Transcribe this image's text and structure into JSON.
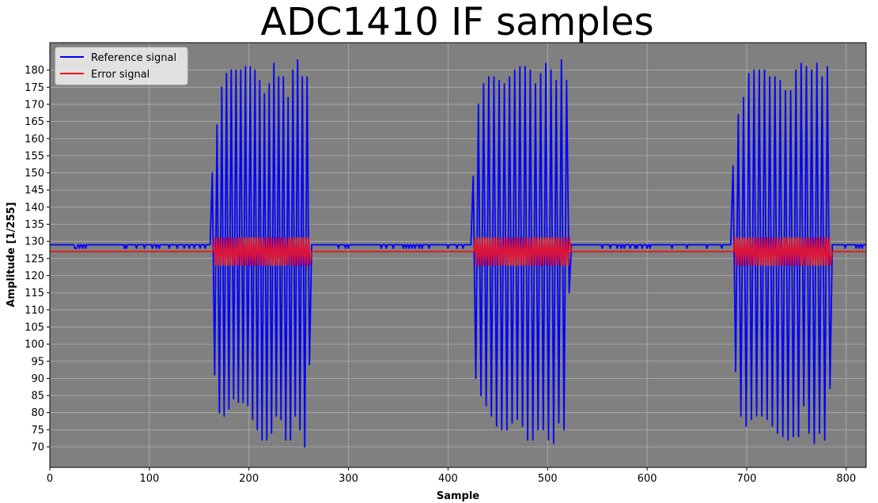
{
  "chart_data": {
    "type": "line",
    "title": "ADC1410 IF samples",
    "xlabel": "Sample",
    "ylabel": "Amplitude [1/255]",
    "xlim": [
      0,
      820
    ],
    "ylim": [
      64,
      188
    ],
    "xticks": [
      0,
      100,
      200,
      300,
      400,
      500,
      600,
      700,
      800
    ],
    "yticks": [
      70,
      75,
      80,
      85,
      90,
      95,
      100,
      105,
      110,
      115,
      120,
      125,
      130,
      135,
      140,
      145,
      150,
      155,
      160,
      165,
      170,
      175,
      180
    ],
    "grid": true,
    "legend_position": "top-left",
    "plot_background": "#808080",
    "series": [
      {
        "name": "Reference signal",
        "color": "#0000ff",
        "baseline": 129,
        "idle_dips": [
          25,
          26,
          27,
          30,
          33,
          36,
          75,
          77,
          87,
          95,
          103,
          107,
          110,
          120,
          128,
          135,
          140,
          145,
          151,
          156,
          290,
          297,
          300,
          333,
          338,
          345,
          355,
          358,
          361,
          364,
          367,
          371,
          374,
          381,
          400,
          409,
          415,
          555,
          563,
          570,
          574,
          577,
          583,
          588,
          590,
          595,
          600,
          603,
          625,
          640,
          660,
          675,
          799,
          810,
          813,
          816
        ],
        "bursts": [
          {
            "start": 162,
            "end": 262,
            "peaks": [
              150,
              164,
              175,
              179,
              180,
              180,
              180,
              181,
              181,
              180,
              177,
              173,
              176,
              182,
              178,
              178,
              172,
              180,
              183,
              178,
              178
            ],
            "troughs": [
              91,
              80,
              79,
              81,
              84,
              83,
              83,
              82,
              78,
              75,
              72,
              72,
              74,
              79,
              78,
              72,
              72,
              79,
              75,
              70,
              94
            ]
          },
          {
            "start": 424,
            "end": 523,
            "peaks": [
              149,
              170,
              176,
              178,
              178,
              177,
              176,
              178,
              180,
              181,
              181,
              180,
              176,
              179,
              182,
              180,
              177,
              183,
              177
            ],
            "troughs": [
              90,
              85,
              82,
              79,
              76,
              75,
              75,
              77,
              78,
              76,
              72,
              72,
              75,
              75,
              72,
              71,
              77,
              75,
              115
            ]
          },
          {
            "start": 685,
            "end": 785,
            "peaks": [
              152,
              167,
              172,
              179,
              180,
              180,
              180,
              178,
              178,
              177,
              174,
              174,
              180,
              182,
              181,
              180,
              182,
              178,
              181
            ],
            "troughs": [
              92,
              79,
              76,
              78,
              79,
              79,
              78,
              76,
              74,
              73,
              72,
              73,
              73,
              82,
              74,
              71,
              74,
              72,
              87
            ]
          }
        ]
      },
      {
        "name": "Error signal",
        "color": "#ff0000",
        "baseline": 127,
        "burst_range": [
          123,
          131
        ],
        "burst_color": "#dc143c"
      }
    ]
  }
}
